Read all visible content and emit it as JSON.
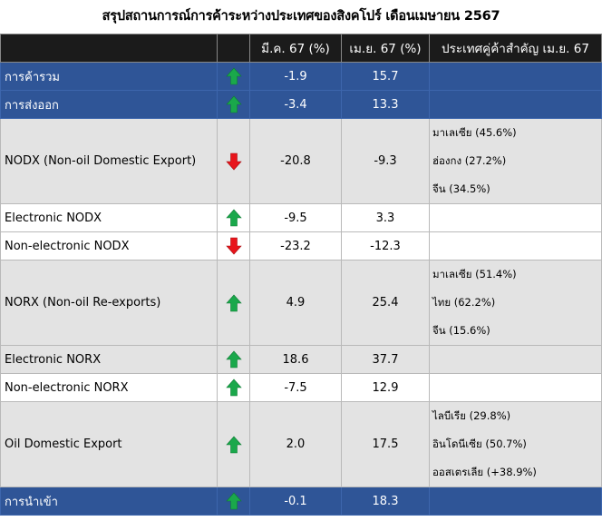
{
  "title": "สรุปสถานการณ์การค้าระหว่างประเทศของสิงคโปร์ เดือนเมษายน 2567",
  "colors": {
    "header_bg": "#1b1b1b",
    "dark_row_bg": "#2f5597",
    "grey_row_bg": "#e3e3e3",
    "arrow_up": "#1aa84b",
    "arrow_down": "#e8141b"
  },
  "table": {
    "headers": [
      "",
      "",
      "มี.ค. 67 (%)",
      "เม.ย. 67 (%)",
      "ประเทศคู่ค้าสำคัญ เม.ย. 67"
    ],
    "rows": [
      {
        "label": "การค้ารวม",
        "trend": "up",
        "mar": "-1.9",
        "apr": "15.7",
        "partners": [],
        "style": "dark"
      },
      {
        "label": "การส่งออก",
        "trend": "up",
        "mar": "-3.4",
        "apr": "13.3",
        "partners": [],
        "style": "dark"
      },
      {
        "label": "NODX (Non-oil Domestic Export)",
        "trend": "down",
        "mar": "-20.8",
        "apr": "-9.3",
        "partners": [
          "มาเลเซีย (45.6%)",
          "ฮ่องกง (27.2%)",
          "จีน (34.5%)"
        ],
        "style": "grey"
      },
      {
        "label": "Electronic NODX",
        "trend": "up",
        "mar": "-9.5",
        "apr": "3.3",
        "partners": [],
        "style": "white"
      },
      {
        "label": "Non-electronic NODX",
        "trend": "down",
        "mar": "-23.2",
        "apr": "-12.3",
        "partners": [],
        "style": "white"
      },
      {
        "label": "NORX (Non-oil Re-exports)",
        "trend": "up",
        "mar": "4.9",
        "apr": "25.4",
        "partners": [
          "มาเลเซีย (51.4%)",
          "ไทย (62.2%)",
          "จีน (15.6%)"
        ],
        "style": "grey"
      },
      {
        "label": "Electronic NORX",
        "trend": "up",
        "mar": "18.6",
        "apr": "37.7",
        "partners": [],
        "style": "grey"
      },
      {
        "label": "Non-electronic NORX",
        "trend": "up",
        "mar": "-7.5",
        "apr": "12.9",
        "partners": [],
        "style": "white"
      },
      {
        "label": "Oil Domestic Export",
        "trend": "up",
        "mar": "2.0",
        "apr": "17.5",
        "partners": [
          "ไลบีเรีย (29.8%)",
          "อินโดนีเซีย (50.7%)",
          "ออสเตรเลีย (+38.9%)"
        ],
        "style": "grey"
      },
      {
        "label": "การนำเข้า",
        "trend": "up",
        "mar": "-0.1",
        "apr": "18.3",
        "partners": [],
        "style": "dark"
      }
    ]
  }
}
